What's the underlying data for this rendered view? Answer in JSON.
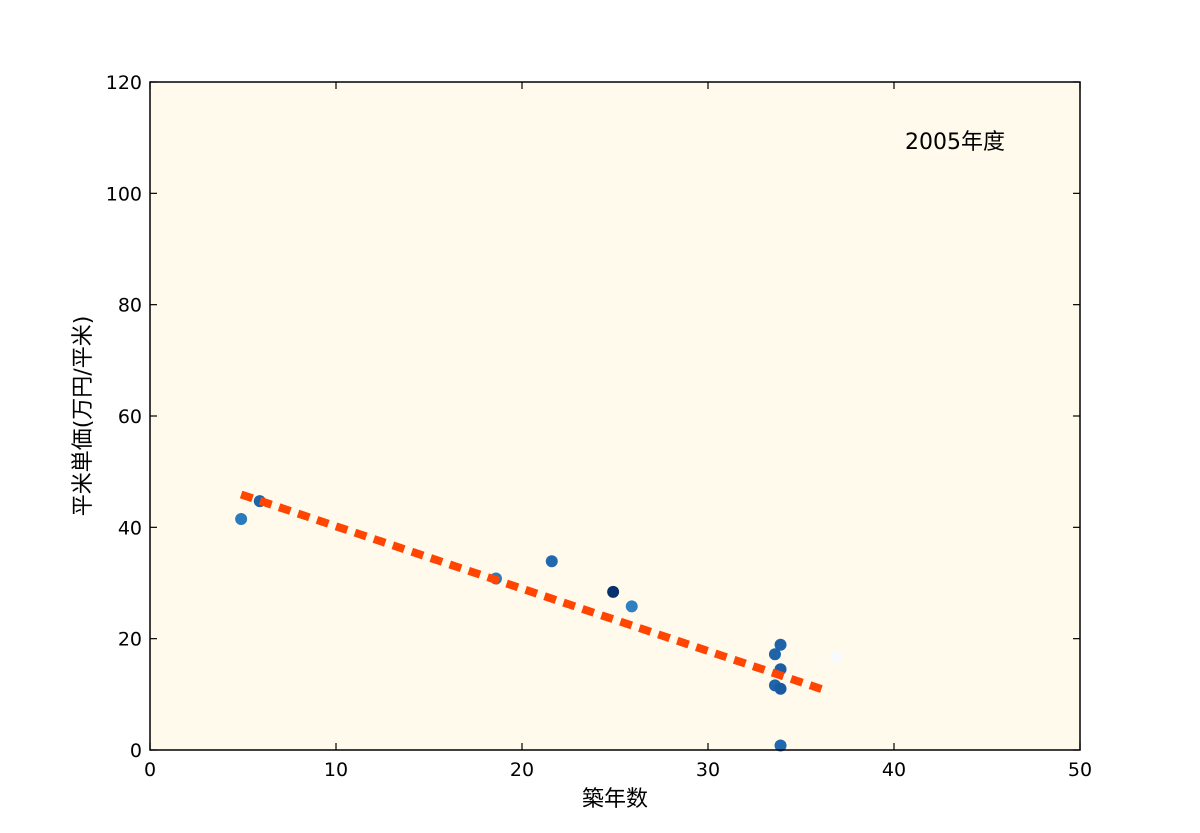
{
  "chart_data": {
    "type": "scatter",
    "title": "",
    "xlabel": "築年数",
    "ylabel": "平米単価(万円/平米)",
    "xlim": [
      0,
      50
    ],
    "ylim": [
      0,
      120
    ],
    "xticks": [
      0,
      10,
      20,
      30,
      40,
      50
    ],
    "yticks": [
      0,
      20,
      40,
      60,
      80,
      100,
      120
    ],
    "grid": false,
    "background_color": "#fffaeb",
    "annotation": "2005年度",
    "annotation_position": "top-right",
    "series": [
      {
        "type": "scatter",
        "points": [
          {
            "x": 4.9,
            "y": 41.5,
            "color": "#2a7bbd"
          },
          {
            "x": 5.9,
            "y": 44.7,
            "color": "#1f63a8"
          },
          {
            "x": 18.6,
            "y": 30.8,
            "color": "#2a7bbd"
          },
          {
            "x": 21.6,
            "y": 33.9,
            "color": "#2268ad"
          },
          {
            "x": 24.9,
            "y": 28.4,
            "color": "#08306b"
          },
          {
            "x": 25.9,
            "y": 25.8,
            "color": "#2f80c0"
          },
          {
            "x": 33.6,
            "y": 17.2,
            "color": "#1f63a8"
          },
          {
            "x": 33.9,
            "y": 18.9,
            "color": "#1f63a8"
          },
          {
            "x": 33.9,
            "y": 14.5,
            "color": "#1b5ea6"
          },
          {
            "x": 33.6,
            "y": 11.6,
            "color": "#1f63a8"
          },
          {
            "x": 33.9,
            "y": 11.0,
            "color": "#1a5aa2"
          },
          {
            "x": 33.9,
            "y": 0.8,
            "color": "#2268ad"
          },
          {
            "x": 36.9,
            "y": 16.7,
            "color": "#f7fbff"
          }
        ]
      },
      {
        "type": "line",
        "style": "dashed",
        "color": "#ff4500",
        "x": [
          4.9,
          36.5
        ],
        "y": [
          45.9,
          10.5
        ]
      }
    ]
  }
}
